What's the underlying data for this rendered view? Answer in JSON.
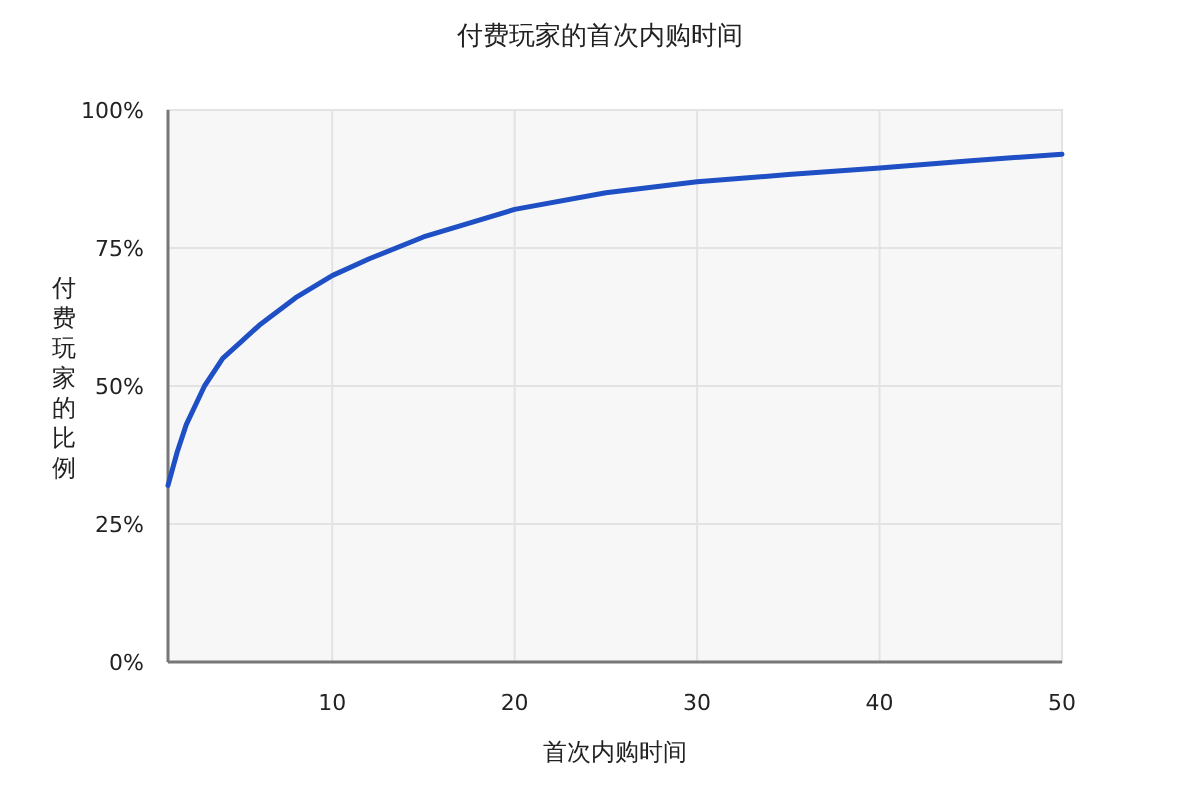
{
  "chart_data": {
    "type": "line",
    "title": "付费玩家的首次内购时间",
    "xlabel": "首次内购时间",
    "ylabel": "付费玩家的比例",
    "x": [
      1,
      1.5,
      2,
      3,
      4,
      5,
      6,
      8,
      10,
      12,
      15,
      20,
      25,
      30,
      35,
      40,
      45,
      50
    ],
    "series": [
      {
        "color": "#1f4fc4",
        "values": [
          32,
          38,
          43,
          50,
          55,
          58,
          61,
          66,
          70,
          73,
          77,
          82,
          85,
          87,
          88.3,
          89.5,
          90.8,
          92
        ]
      }
    ],
    "xlim": [
      1,
      50
    ],
    "xticks": [
      10,
      20,
      30,
      40,
      50
    ],
    "ylim": [
      0,
      100
    ],
    "yticks": [
      {
        "value": 0,
        "label": "0%"
      },
      {
        "value": 25,
        "label": "25%"
      },
      {
        "value": 50,
        "label": "50%"
      },
      {
        "value": 75,
        "label": "75%"
      },
      {
        "value": 100,
        "label": "100%"
      }
    ],
    "grid": true,
    "marker": "none",
    "line_style": "solid"
  }
}
